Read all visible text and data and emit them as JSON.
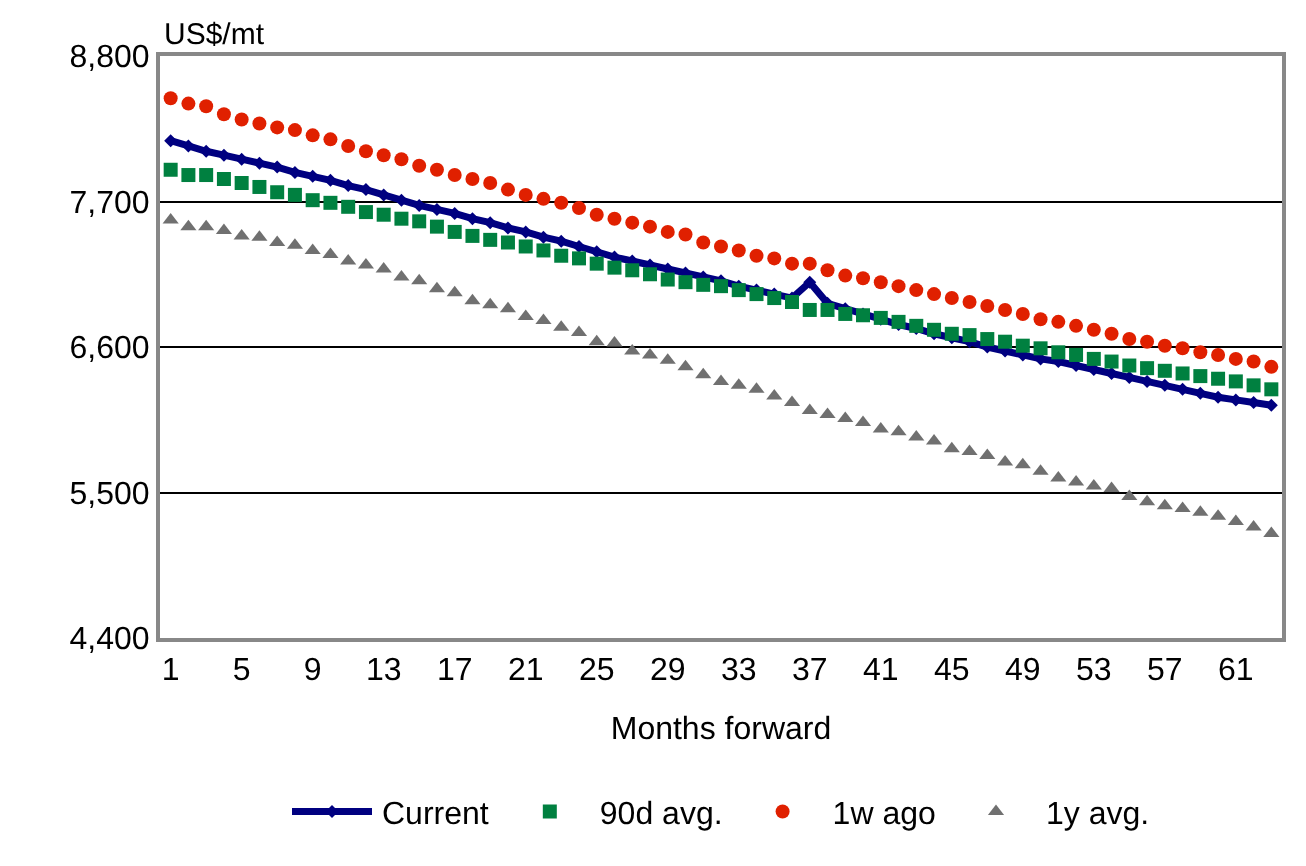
{
  "chart_data": {
    "type": "line",
    "ylabel": "US$/mt",
    "xlabel": "Months forward",
    "categories": [
      "1",
      null,
      null,
      null,
      "5",
      null,
      null,
      null,
      "9",
      null,
      null,
      null,
      "13",
      null,
      null,
      null,
      "17",
      null,
      null,
      null,
      "21",
      null,
      null,
      null,
      "25",
      null,
      null,
      null,
      "29",
      null,
      null,
      null,
      "33",
      null,
      null,
      null,
      "37",
      null,
      null,
      null,
      "41",
      null,
      null,
      null,
      "45",
      null,
      null,
      null,
      "49",
      null,
      null,
      null,
      "53",
      null,
      null,
      null,
      "57",
      null,
      null,
      null,
      "61",
      null,
      null
    ],
    "ylim": [
      4400,
      8800
    ],
    "yticks": [
      {
        "value": 4400,
        "label": "4,400"
      },
      {
        "value": 5500,
        "label": "5,500"
      },
      {
        "value": 6600,
        "label": "6,600"
      },
      {
        "value": 7700,
        "label": "7,700"
      },
      {
        "value": 8800,
        "label": "8,800"
      }
    ],
    "grid": "y",
    "legend": "bottom",
    "series": [
      {
        "name": "Current",
        "marker": "diamond",
        "color": "#000080",
        "values": [
          8160,
          8120,
          8080,
          8050,
          8020,
          7990,
          7960,
          7920,
          7890,
          7860,
          7820,
          7790,
          7750,
          7710,
          7670,
          7640,
          7610,
          7570,
          7540,
          7500,
          7470,
          7430,
          7400,
          7360,
          7320,
          7280,
          7250,
          7220,
          7190,
          7160,
          7130,
          7100,
          7060,
          7030,
          7000,
          6970,
          7090,
          6930,
          6890,
          6850,
          6810,
          6770,
          6740,
          6700,
          6670,
          6640,
          6600,
          6570,
          6540,
          6510,
          6490,
          6460,
          6430,
          6400,
          6370,
          6340,
          6310,
          6280,
          6250,
          6220,
          6200,
          6180,
          6160
        ]
      },
      {
        "name": "90d avg.",
        "type": "scatter",
        "marker": "square",
        "color": "#008040",
        "values": [
          7940,
          7900,
          7900,
          7870,
          7840,
          7810,
          7770,
          7750,
          7710,
          7690,
          7660,
          7620,
          7600,
          7570,
          7550,
          7510,
          7470,
          7440,
          7410,
          7390,
          7360,
          7330,
          7290,
          7270,
          7230,
          7200,
          7180,
          7150,
          7110,
          7090,
          7070,
          7060,
          7030,
          7000,
          6970,
          6940,
          6880,
          6880,
          6850,
          6840,
          6820,
          6790,
          6760,
          6730,
          6700,
          6690,
          6660,
          6640,
          6610,
          6590,
          6560,
          6540,
          6510,
          6490,
          6460,
          6440,
          6420,
          6400,
          6380,
          6360,
          6340,
          6310,
          6280
        ]
      },
      {
        "name": "1w ago",
        "type": "scatter",
        "marker": "circle",
        "color": "#e02000",
        "values": [
          8480,
          8440,
          8420,
          8360,
          8320,
          8290,
          8260,
          8240,
          8200,
          8170,
          8120,
          8080,
          8050,
          8020,
          7970,
          7940,
          7900,
          7870,
          7840,
          7790,
          7750,
          7720,
          7690,
          7650,
          7600,
          7570,
          7540,
          7510,
          7470,
          7450,
          7390,
          7360,
          7330,
          7290,
          7270,
          7230,
          7230,
          7180,
          7140,
          7120,
          7090,
          7060,
          7030,
          7000,
          6970,
          6940,
          6910,
          6880,
          6850,
          6810,
          6790,
          6760,
          6730,
          6700,
          6660,
          6640,
          6610,
          6590,
          6560,
          6540,
          6510,
          6490,
          6450
        ]
      },
      {
        "name": "1y avg.",
        "type": "scatter",
        "marker": "triangle",
        "color": "#707070",
        "values": [
          7560,
          7510,
          7510,
          7480,
          7440,
          7430,
          7390,
          7370,
          7330,
          7300,
          7250,
          7220,
          7190,
          7130,
          7100,
          7040,
          7010,
          6950,
          6920,
          6890,
          6830,
          6800,
          6750,
          6710,
          6640,
          6630,
          6570,
          6540,
          6500,
          6450,
          6390,
          6340,
          6310,
          6280,
          6230,
          6180,
          6120,
          6090,
          6060,
          6030,
          5980,
          5960,
          5920,
          5890,
          5830,
          5810,
          5780,
          5730,
          5710,
          5660,
          5610,
          5580,
          5550,
          5530,
          5470,
          5430,
          5400,
          5380,
          5350,
          5320,
          5280,
          5240,
          5190
        ]
      }
    ]
  }
}
